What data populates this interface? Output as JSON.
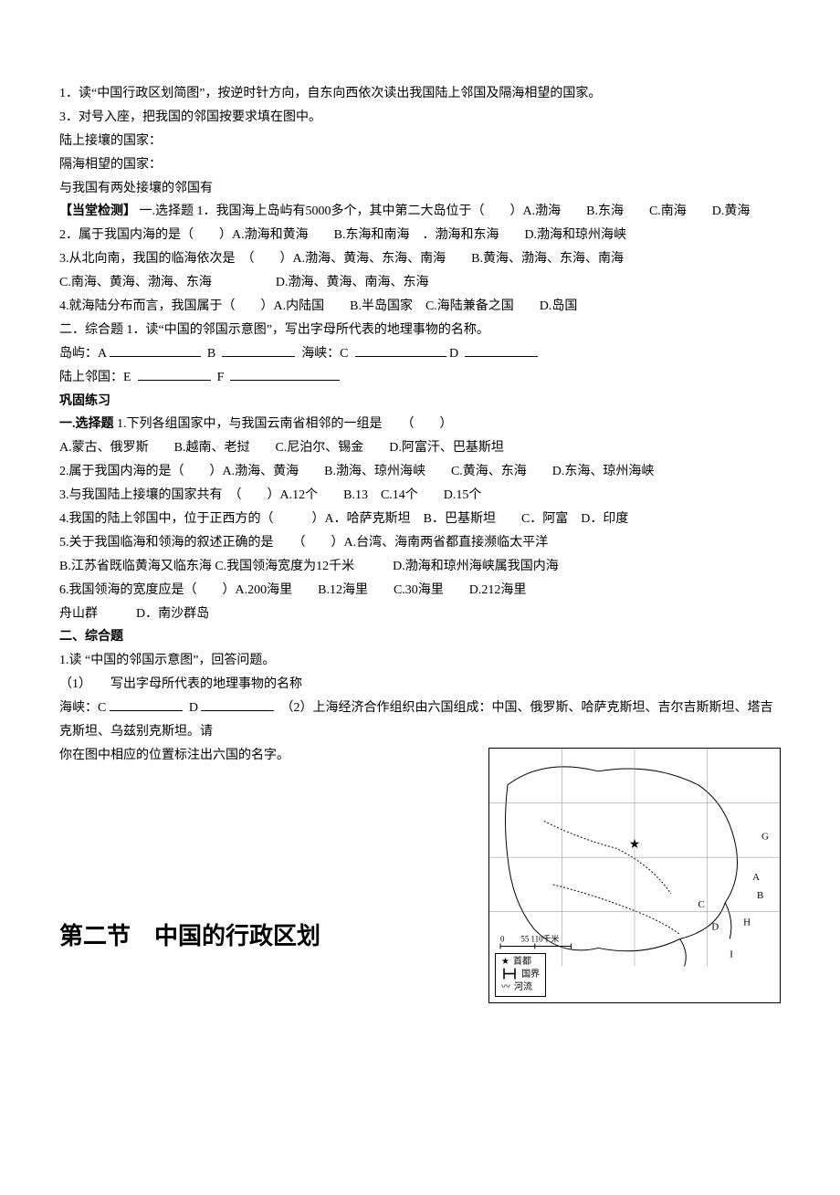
{
  "intro": {
    "q1": "1．读“中国行政区划简图”，按逆时针方向，自东向西依次读出我国陆上邻国及隔海相望的国家。",
    "q3": "3．对号入座，把我国的邻国按要求填在图中。",
    "l1": "陆上接壤的国家：",
    "l2": "隔海相望的国家：",
    "l3": "与我国有两处接壤的邻国有"
  },
  "check": {
    "title": "【当堂检测】",
    "sec1": "一.选择题",
    "q1": "1．我国海上岛屿有5000多个，其中第二大岛位于（　　）A.渤海　　B.东海　　C.南海　　D.黄海",
    "q2": "2．属于我国内海的是（　　）A.渤海和黄海　　B.东海和南海　．渤海和东海　　D.渤海和琼州海峡",
    "q3": "3.从北向南，我国的临海依次是　（　　）A.渤海、黄海、东海、南海　　B.黄海、渤海、东海、南海",
    "q3b": "C.南海、黄海、渤海、东海　　　　　D.渤海、黄海、南海、东海",
    "q4": "4.就海陆分布而言，我国属于（　　）A.内陆国　　B.半岛国家　C.海陆兼备之国　　D.岛国",
    "sec2": "二．综合题",
    "c1": "1．读“中国的邻国示意图”，写出字母所代表的地理事物的名称。",
    "c1a": "岛屿：A",
    "c1b": "B",
    "c1c": "海峡：C",
    "c1d": "D",
    "c1e": "陆上邻国：E",
    "c1f": "F"
  },
  "consol": {
    "title": "巩固练习",
    "sec1": "一.选择题",
    "q1": "1.下列各组国家中，与我国云南省相邻的一组是　　（　　）",
    "q1o": "A.蒙古、俄罗斯　　B.越南、老挝　　C.尼泊尔、锡金　　D.阿富汗、巴基斯坦",
    "q2": "2.属于我国内海的是（　　）A.渤海、黄海　　B.渤海、琼州海峡　　C.黄海、东海　　D.东海、琼州海峡",
    "q3": "3.与我国陆上接壤的国家共有　（　　）A.12个　　B.13　C.14个　　D.15个",
    "q4": "4.我国的陆上邻国中，位于正西方的（　　　）A．哈萨克斯坦　B．巴基斯坦　　C．阿富　D．印度",
    "q5": "5.关于我国临海和领海的叙述正确的是　　（　　）A.台湾、海南两省都直接濒临太平洋",
    "q5b": "B.江苏省既临黄海又临东海 C.我国领海宽度为12千米　　　D.渤海和琼州海峡属我国内海",
    "q6": "6.我国领海的宽度应是（　　）A.200海里　　B.12海里　　C.30海里　　D.212海里",
    "q6b": "舟山群　　　D．南沙群岛",
    "sec2": "二、综合题",
    "c1": "1.读 “中国的邻国示意图”，回答问题。",
    "c1a": "（1）　　写出字母所代表的地理事物的名称",
    "c1b_pre": "海峡：C",
    "c1b_mid": "D",
    "c1b_post": "（2）上海经济合作组织由六国组成：中国、俄罗斯、哈萨克斯坦、吉尔吉斯斯坦、塔吉克斯坦、乌兹别克斯坦。请",
    "c1c": "你在图中相应的位置标注出六国的名字。"
  },
  "next_section": "第二节　中国的行政区划",
  "map": {
    "scale": "0　　55 110千米",
    "legend_capital": "首都",
    "legend_border": "国界",
    "legend_river": "河流",
    "label_G": "G",
    "label_A": "A",
    "label_B": "B",
    "label_H": "H",
    "label_I": "I",
    "label_C": "C",
    "label_D": "D"
  },
  "style": {
    "blank_short": 80,
    "blank_med": 100,
    "blank_long": 120
  }
}
